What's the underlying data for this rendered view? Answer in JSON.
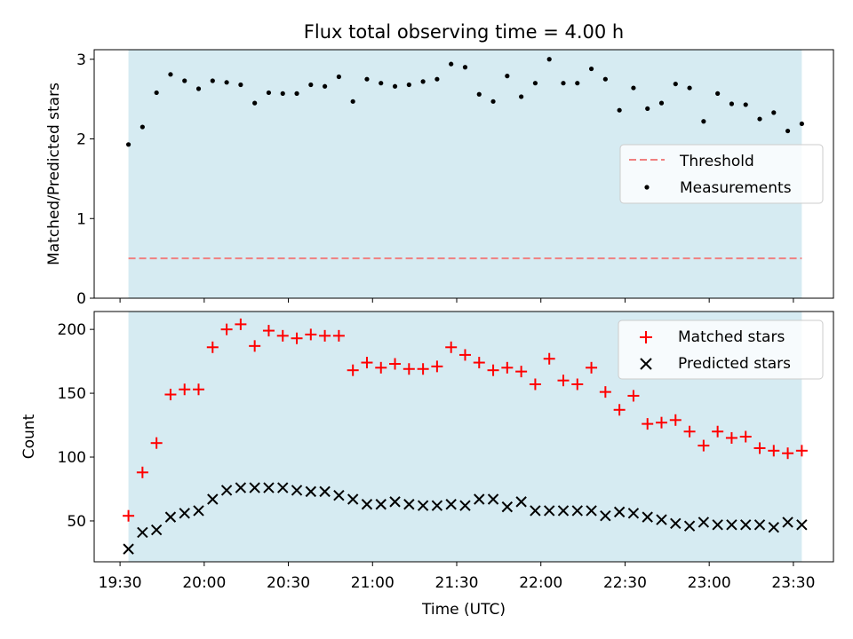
{
  "chart_data": {
    "title": "Flux total observing time = 4.00 h",
    "xlabel": "Time (UTC)",
    "x_ticks": [
      "19:30",
      "20:00",
      "20:30",
      "21:00",
      "21:30",
      "22:00",
      "22:30",
      "23:00",
      "23:30"
    ],
    "x_tick_minutes": [
      0,
      30,
      60,
      90,
      120,
      150,
      180,
      210,
      240
    ],
    "times": [
      "19:33",
      "19:38",
      "19:43",
      "19:48",
      "19:53",
      "19:58",
      "20:03",
      "20:08",
      "20:13",
      "20:18",
      "20:23",
      "20:28",
      "20:33",
      "20:38",
      "20:43",
      "20:48",
      "20:53",
      "20:58",
      "21:03",
      "21:08",
      "21:13",
      "21:18",
      "21:23",
      "21:28",
      "21:33",
      "21:38",
      "21:43",
      "21:48",
      "21:53",
      "21:58",
      "22:03",
      "22:08",
      "22:13",
      "22:18",
      "22:23",
      "22:28",
      "22:33",
      "22:38",
      "22:43",
      "22:48",
      "22:53",
      "22:58",
      "23:03",
      "23:08",
      "23:13",
      "23:18",
      "23:23",
      "23:28",
      "23:33"
    ],
    "times_minutes": [
      3,
      8,
      13,
      18,
      23,
      28,
      33,
      38,
      43,
      48,
      53,
      58,
      63,
      68,
      73,
      78,
      83,
      88,
      93,
      98,
      103,
      108,
      113,
      118,
      123,
      128,
      133,
      138,
      143,
      148,
      153,
      158,
      163,
      168,
      173,
      178,
      183,
      188,
      193,
      198,
      203,
      208,
      213,
      218,
      223,
      228,
      233,
      238,
      243
    ],
    "observing_span": [
      "19:33",
      "23:33"
    ],
    "colors": {
      "span": "#add8e6",
      "threshold": "#f08080",
      "matched": "#ff0000",
      "predicted": "#000000",
      "measurement": "#000000"
    },
    "panels": [
      {
        "type": "scatter",
        "ylabel": "Matched/Predicted stars",
        "ylim": [
          0,
          3.12
        ],
        "y_ticks": [
          "0",
          "1",
          "2",
          "3"
        ],
        "y_tick_values": [
          0,
          1,
          2,
          3
        ],
        "threshold": {
          "name": "Threshold",
          "value": 0.5
        },
        "series": [
          {
            "name": "Measurements",
            "marker": "dot",
            "values": [
              1.93,
              2.15,
              2.58,
              2.81,
              2.73,
              2.63,
              2.73,
              2.71,
              2.68,
              2.45,
              2.58,
              2.57,
              2.57,
              2.68,
              2.66,
              2.78,
              2.47,
              2.75,
              2.7,
              2.66,
              2.68,
              2.72,
              2.75,
              2.94,
              2.9,
              2.56,
              2.47,
              2.79,
              2.53,
              2.7,
              3.0,
              2.7,
              2.7,
              2.88,
              2.75,
              2.36,
              2.64,
              2.38,
              2.45,
              2.69,
              2.64,
              2.22,
              2.57,
              2.44,
              2.43,
              2.25,
              2.33,
              2.1,
              2.19
            ]
          }
        ],
        "legend": [
          "Threshold",
          "Measurements"
        ],
        "legend_position": "center-right"
      },
      {
        "type": "scatter",
        "ylabel": "Count",
        "ylim": [
          18,
          214
        ],
        "y_ticks": [
          "50",
          "100",
          "150",
          "200"
        ],
        "y_tick_values": [
          50,
          100,
          150,
          200
        ],
        "series": [
          {
            "name": "Matched stars",
            "marker": "plus",
            "values": [
              54,
              88,
              111,
              149,
              153,
              153,
              186,
              200,
              204,
              187,
              199,
              195,
              193,
              196,
              195,
              195,
              168,
              174,
              170,
              173,
              169,
              169,
              171,
              186,
              180,
              174,
              168,
              170,
              167,
              157,
              177,
              160,
              157,
              170,
              151,
              137,
              148,
              126,
              127,
              129,
              120,
              109,
              120,
              115,
              116,
              107,
              105,
              103,
              105
            ]
          },
          {
            "name": "Predicted stars",
            "marker": "x",
            "values": [
              28,
              41,
              43,
              53,
              56,
              58,
              67,
              74,
              76,
              76,
              76,
              76,
              74,
              73,
              73,
              70,
              67,
              63,
              63,
              65,
              63,
              62,
              62,
              63,
              62,
              67,
              67,
              61,
              65,
              58,
              58,
              58,
              58,
              58,
              54,
              57,
              56,
              53,
              51,
              48,
              46,
              49,
              47,
              47,
              47,
              47,
              45,
              49,
              47
            ]
          }
        ],
        "legend": [
          "Matched stars",
          "Predicted stars"
        ],
        "legend_position": "upper-right"
      }
    ]
  }
}
